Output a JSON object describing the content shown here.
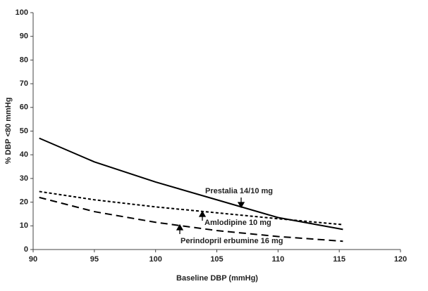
{
  "chart_data": {
    "type": "line",
    "x_label": "Baseline DBP (mmHg)",
    "y_label": "% DBP <80 mmHg",
    "x": [
      90.5,
      95,
      100,
      105,
      110,
      115.3
    ],
    "series": [
      {
        "name": "Prestalia 14/10 mg",
        "color": "#000000",
        "dash": "solid",
        "values": [
          47,
          37,
          28.5,
          21,
          13.5,
          8.5
        ]
      },
      {
        "name": "Amlodipine 10 mg",
        "color": "#000000",
        "dash": "short",
        "values": [
          24.5,
          21,
          18,
          15.5,
          13,
          10.5
        ]
      },
      {
        "name": "Perindopril erbumine 16 mg",
        "color": "#000000",
        "dash": "long",
        "values": [
          22,
          16,
          11.5,
          8,
          5.5,
          3.5
        ]
      }
    ],
    "xlim": [
      90,
      120
    ],
    "xticks": [
      90,
      95,
      100,
      105,
      110,
      115,
      120
    ],
    "ylim": [
      0,
      100
    ],
    "yticks": [
      0,
      10,
      20,
      30,
      40,
      50,
      60,
      70,
      80,
      90,
      100
    ]
  }
}
